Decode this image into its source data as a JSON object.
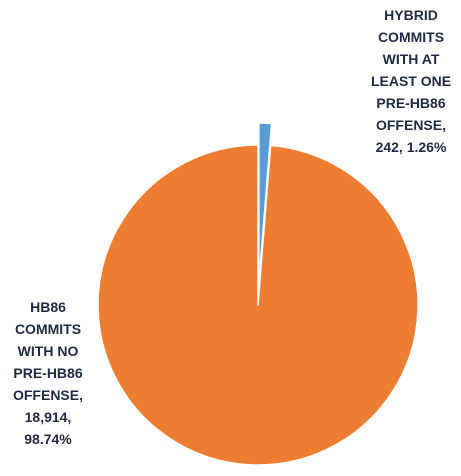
{
  "chart_data": {
    "type": "pie",
    "title": "",
    "slices": [
      {
        "label": "HYBRID COMMITS WITH AT LEAST ONE PRE-HB86 OFFENSE",
        "value": 242,
        "percent": 1.26,
        "display_label": "HYBRID\nCOMMITS\nWITH AT\nLEAST ONE\nPRE-HB86\nOFFENSE,\n242, 1.26%",
        "color": "#5b9bd5"
      },
      {
        "label": "HB86 COMMITS WITH NO PRE-HB86 OFFENSE",
        "value": 18914,
        "percent": 98.74,
        "display_label": "HB86\nCOMMITS\nWITH NO\nPRE-HB86\nOFFENSE,\n18,914,\n98.74%",
        "color": "#ed7d31"
      }
    ],
    "legend": "none"
  }
}
